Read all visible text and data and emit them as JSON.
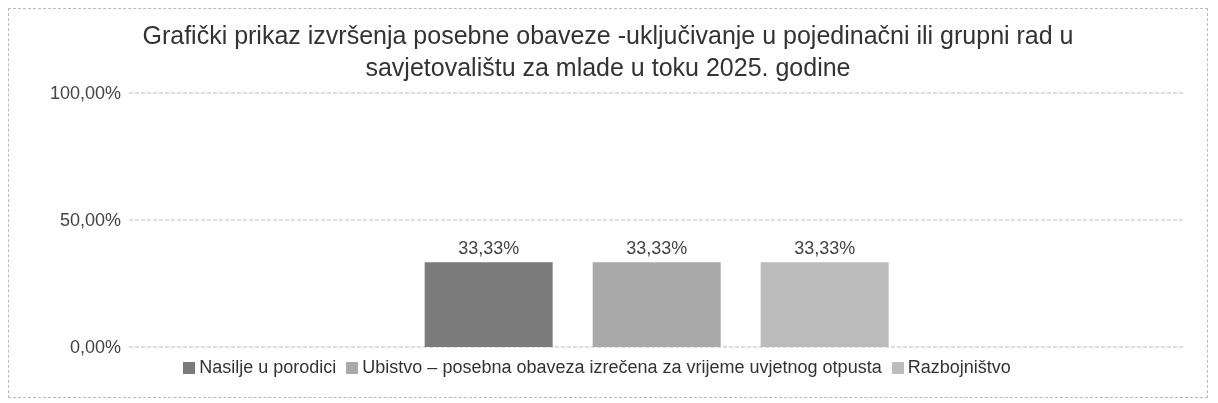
{
  "chart_data": {
    "type": "bar",
    "title": "Grafički prikaz izvršenja posebne obaveze -uključivanje u pojedinačni ili grupni rad u savjetovalištu za mlade u toku 2025. godine",
    "categories": [
      null
    ],
    "series": [
      {
        "name": "Nasilje u porodici",
        "color": "#7b7b7b",
        "values": [
          33.33
        ],
        "value_labels": [
          "33,33%"
        ]
      },
      {
        "name": "Ubistvo – posebna obaveza izrečena  za vrijeme uvjetnog otpusta",
        "color": "#a9a9a9",
        "values": [
          33.33
        ],
        "value_labels": [
          "33,33%"
        ]
      },
      {
        "name": "Razbojništvo",
        "color": "#bcbcbc",
        "values": [
          33.33
        ],
        "value_labels": [
          "33,33%"
        ]
      }
    ],
    "ylim": [
      0,
      100
    ],
    "yticks": [
      {
        "value": 0,
        "label": "0,00%"
      },
      {
        "value": 50,
        "label": "50,00%"
      },
      {
        "value": 100,
        "label": "100,00%"
      }
    ],
    "grid": "y",
    "legend": "bottom"
  }
}
